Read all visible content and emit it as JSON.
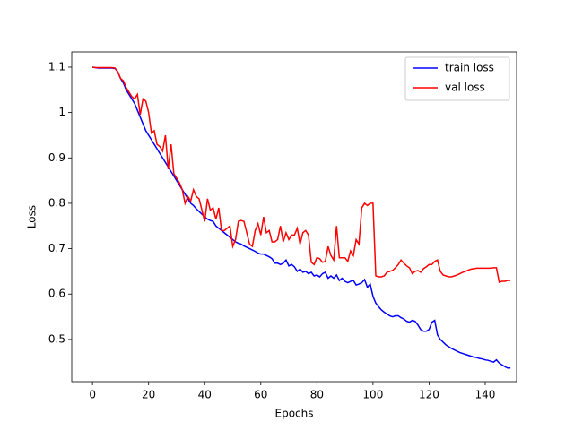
{
  "chart_data": {
    "type": "line",
    "xlabel": "Epochs",
    "ylabel": "Loss",
    "x": [
      0,
      1,
      2,
      3,
      4,
      5,
      6,
      7,
      8,
      9,
      10,
      11,
      12,
      13,
      14,
      15,
      16,
      17,
      18,
      19,
      20,
      21,
      22,
      23,
      24,
      25,
      26,
      27,
      28,
      29,
      30,
      31,
      32,
      33,
      34,
      35,
      36,
      37,
      38,
      39,
      40,
      41,
      42,
      43,
      44,
      45,
      46,
      47,
      48,
      49,
      50,
      51,
      52,
      53,
      54,
      55,
      56,
      57,
      58,
      59,
      60,
      61,
      62,
      63,
      64,
      65,
      66,
      67,
      68,
      69,
      70,
      71,
      72,
      73,
      74,
      75,
      76,
      77,
      78,
      79,
      80,
      81,
      82,
      83,
      84,
      85,
      86,
      87,
      88,
      89,
      90,
      91,
      92,
      93,
      94,
      95,
      96,
      97,
      98,
      99,
      100,
      101,
      102,
      103,
      104,
      105,
      106,
      107,
      108,
      109,
      110,
      111,
      112,
      113,
      114,
      115,
      116,
      117,
      118,
      119,
      120,
      121,
      122,
      123,
      124,
      125,
      126,
      127,
      128,
      129,
      130,
      131,
      132,
      133,
      134,
      135,
      136,
      137,
      138,
      139,
      140,
      141,
      142,
      143,
      144,
      145,
      146,
      147,
      148,
      149
    ],
    "series": [
      {
        "name": "train loss",
        "color": "#0000ff",
        "values": [
          1.1,
          1.099,
          1.098,
          1.098,
          1.098,
          1.098,
          1.098,
          1.098,
          1.097,
          1.09,
          1.075,
          1.065,
          1.05,
          1.04,
          1.03,
          1.02,
          1.005,
          0.99,
          0.975,
          0.96,
          0.95,
          0.94,
          0.93,
          0.92,
          0.91,
          0.9,
          0.89,
          0.88,
          0.87,
          0.86,
          0.85,
          0.84,
          0.83,
          0.82,
          0.81,
          0.8,
          0.795,
          0.788,
          0.782,
          0.776,
          0.77,
          0.765,
          0.762,
          0.76,
          0.75,
          0.745,
          0.74,
          0.735,
          0.73,
          0.725,
          0.72,
          0.715,
          0.712,
          0.71,
          0.706,
          0.703,
          0.7,
          0.697,
          0.694,
          0.69,
          0.688,
          0.688,
          0.685,
          0.682,
          0.678,
          0.668,
          0.668,
          0.665,
          0.668,
          0.675,
          0.662,
          0.665,
          0.66,
          0.65,
          0.655,
          0.648,
          0.65,
          0.645,
          0.648,
          0.64,
          0.642,
          0.638,
          0.645,
          0.648,
          0.635,
          0.64,
          0.635,
          0.642,
          0.63,
          0.635,
          0.628,
          0.625,
          0.628,
          0.63,
          0.62,
          0.622,
          0.625,
          0.632,
          0.615,
          0.622,
          0.595,
          0.58,
          0.572,
          0.565,
          0.56,
          0.556,
          0.552,
          0.55,
          0.552,
          0.552,
          0.548,
          0.545,
          0.54,
          0.538,
          0.542,
          0.54,
          0.532,
          0.522,
          0.518,
          0.518,
          0.522,
          0.538,
          0.542,
          0.51,
          0.5,
          0.494,
          0.488,
          0.484,
          0.48,
          0.477,
          0.474,
          0.471,
          0.469,
          0.467,
          0.465,
          0.463,
          0.461,
          0.46,
          0.458,
          0.457,
          0.455,
          0.454,
          0.452,
          0.45,
          0.455,
          0.448,
          0.444,
          0.44,
          0.437,
          0.437
        ]
      },
      {
        "name": "val loss",
        "color": "#ff0000",
        "values": [
          1.1,
          1.099,
          1.099,
          1.099,
          1.099,
          1.099,
          1.099,
          1.099,
          1.098,
          1.09,
          1.075,
          1.07,
          1.055,
          1.045,
          1.035,
          1.03,
          1.04,
          0.995,
          1.03,
          1.025,
          1.0,
          0.955,
          0.96,
          0.93,
          0.925,
          0.915,
          0.95,
          0.875,
          0.93,
          0.865,
          0.855,
          0.845,
          0.83,
          0.8,
          0.815,
          0.805,
          0.83,
          0.815,
          0.81,
          0.785,
          0.76,
          0.81,
          0.785,
          0.79,
          0.765,
          0.79,
          0.74,
          0.74,
          0.745,
          0.75,
          0.705,
          0.72,
          0.76,
          0.762,
          0.76,
          0.735,
          0.71,
          0.705,
          0.74,
          0.755,
          0.73,
          0.77,
          0.735,
          0.74,
          0.715,
          0.715,
          0.72,
          0.75,
          0.715,
          0.735,
          0.72,
          0.73,
          0.73,
          0.745,
          0.71,
          0.735,
          0.74,
          0.73,
          0.67,
          0.665,
          0.68,
          0.678,
          0.67,
          0.672,
          0.705,
          0.685,
          0.675,
          0.75,
          0.68,
          0.68,
          0.68,
          0.672,
          0.695,
          0.685,
          0.72,
          0.71,
          0.79,
          0.8,
          0.795,
          0.8,
          0.8,
          0.64,
          0.638,
          0.638,
          0.64,
          0.648,
          0.65,
          0.652,
          0.658,
          0.665,
          0.675,
          0.668,
          0.662,
          0.658,
          0.645,
          0.65,
          0.652,
          0.648,
          0.656,
          0.66,
          0.665,
          0.665,
          0.672,
          0.675,
          0.65,
          0.642,
          0.64,
          0.638,
          0.638,
          0.64,
          0.642,
          0.645,
          0.648,
          0.65,
          0.653,
          0.655,
          0.656,
          0.657,
          0.657,
          0.657,
          0.657,
          0.657,
          0.657,
          0.658,
          0.658,
          0.626,
          0.628,
          0.628,
          0.63,
          0.63
        ]
      }
    ],
    "xlim": [
      -7.4,
      151.2
    ],
    "ylim": [
      0.407,
      1.1335
    ],
    "xticks": [
      0,
      20,
      40,
      60,
      80,
      100,
      120,
      140
    ],
    "yticks": [
      0.5,
      0.6,
      0.7,
      0.8,
      0.9,
      1.0,
      1.1
    ],
    "legend": "upper right"
  }
}
